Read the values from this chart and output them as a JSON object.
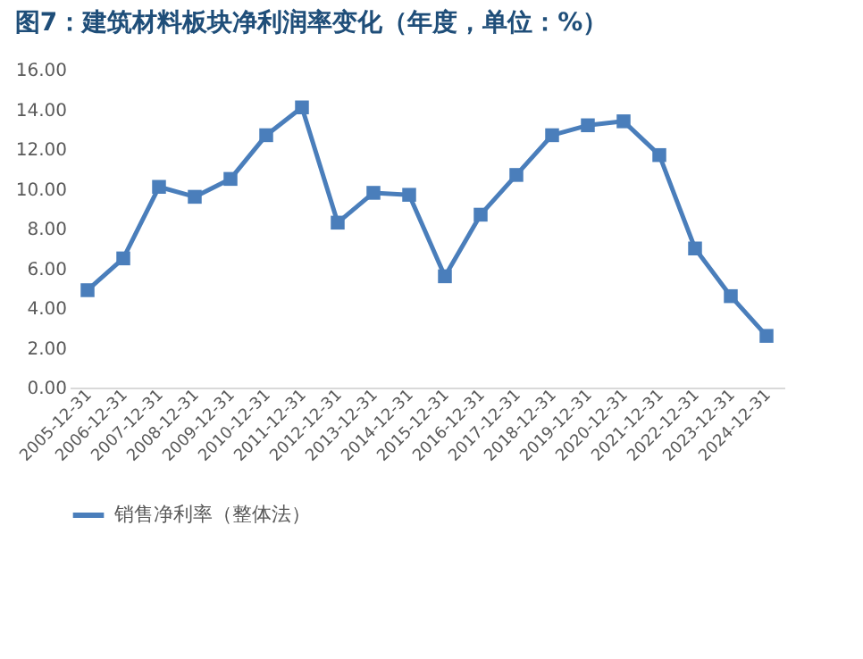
{
  "chart_data": {
    "type": "line",
    "title": "图7：建筑材料板块净利润率变化（年度，单位：%）",
    "categories": [
      "2005-12-31",
      "2006-12-31",
      "2007-12-31",
      "2008-12-31",
      "2009-12-31",
      "2010-12-31",
      "2011-12-31",
      "2012-12-31",
      "2013-12-31",
      "2014-12-31",
      "2015-12-31",
      "2016-12-31",
      "2017-12-31",
      "2018-12-31",
      "2019-12-31",
      "2020-12-31",
      "2021-12-31",
      "2022-12-31",
      "2023-12-31",
      "2024-12-31"
    ],
    "series": [
      {
        "name": "销售净利率（整体法）",
        "color": "#4a7ebb",
        "values": [
          4.9,
          6.5,
          10.1,
          9.6,
          10.5,
          12.7,
          14.1,
          8.3,
          9.8,
          9.7,
          5.6,
          8.7,
          10.7,
          12.7,
          13.2,
          13.4,
          11.7,
          7.0,
          4.6,
          2.6
        ]
      }
    ],
    "ylim": [
      0,
      16
    ],
    "yticks": [
      {
        "value": 0,
        "label": "0.00"
      },
      {
        "value": 2,
        "label": "2.00"
      },
      {
        "value": 4,
        "label": "4.00"
      },
      {
        "value": 6,
        "label": "6.00"
      },
      {
        "value": 8,
        "label": "8.00"
      },
      {
        "value": 10,
        "label": "10.00"
      },
      {
        "value": 12,
        "label": "12.00"
      },
      {
        "value": 14,
        "label": "14.00"
      },
      {
        "value": 16,
        "label": "16.00"
      }
    ],
    "grid": false,
    "legend": "bottom",
    "marker": "square",
    "line_style": "solid"
  }
}
